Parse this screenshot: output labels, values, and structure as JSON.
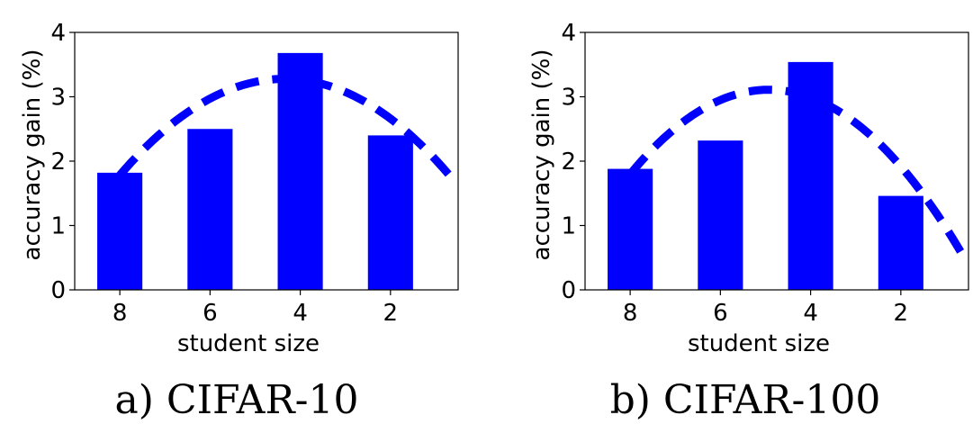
{
  "chart_data": [
    {
      "type": "bar",
      "caption": "a) CIFAR-10",
      "categories": [
        "8",
        "6",
        "4",
        "2"
      ],
      "values": [
        1.82,
        2.5,
        3.68,
        2.4
      ],
      "curve": [
        1.75,
        2.77,
        3.28,
        3.24,
        2.55,
        1.78
      ],
      "xlabel": "student size",
      "ylabel": "accuracy gain (%)",
      "ylim": [
        0,
        4
      ],
      "yticks": [
        "0",
        "1",
        "2",
        "3",
        "4"
      ],
      "bar_color": "#0000ff",
      "curve_color": "#0000ff"
    },
    {
      "type": "bar",
      "caption": "b) CIFAR-100",
      "categories": [
        "8",
        "6",
        "4",
        "2"
      ],
      "values": [
        1.88,
        2.32,
        3.54,
        1.46
      ],
      "curve": [
        1.8,
        2.76,
        3.09,
        2.86,
        1.99,
        0.5
      ],
      "xlabel": "student size",
      "ylabel": "accuracy gain (%)",
      "ylim": [
        0,
        4
      ],
      "yticks": [
        "0",
        "1",
        "2",
        "3",
        "4"
      ],
      "bar_color": "#0000ff",
      "curve_color": "#0000ff"
    }
  ]
}
